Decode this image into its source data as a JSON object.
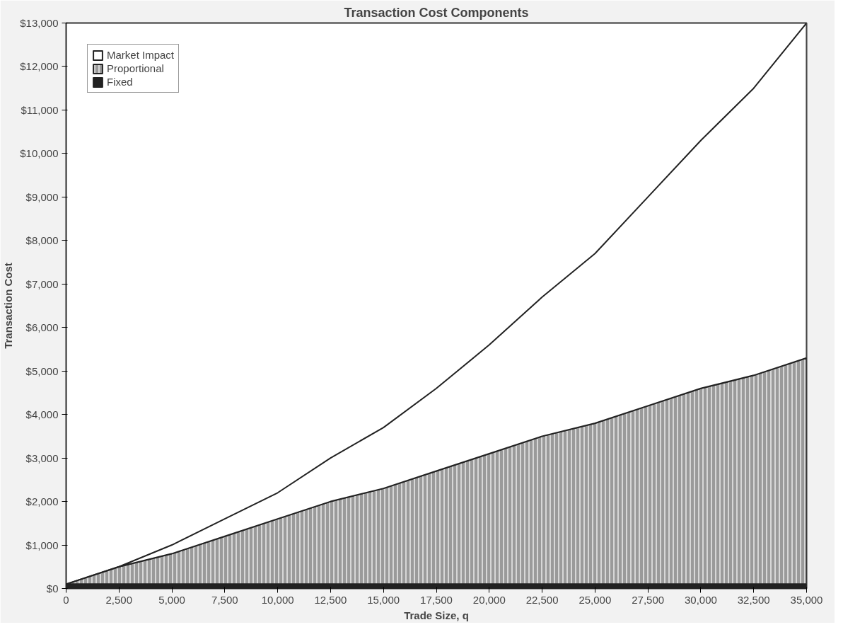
{
  "chart_data": {
    "type": "area",
    "stacked": true,
    "title": "Transaction Cost Components",
    "xlabel": "Trade Size, q",
    "ylabel": "Transaction Cost",
    "x": [
      0,
      2500,
      5000,
      7500,
      10000,
      12500,
      15000,
      17500,
      20000,
      22500,
      25000,
      27500,
      30000,
      32500,
      35000
    ],
    "series": [
      {
        "name": "Fixed",
        "color": "#222222",
        "values": [
          100,
          100,
          100,
          100,
          100,
          100,
          100,
          100,
          100,
          100,
          100,
          100,
          100,
          100,
          100
        ]
      },
      {
        "name": "Proportional",
        "color": "#9a9a9a",
        "values": [
          0,
          400,
          700,
          1100,
          1500,
          1900,
          2200,
          2600,
          3000,
          3400,
          3700,
          4100,
          4500,
          4800,
          5200
        ]
      },
      {
        "name": "Market Impact",
        "color": "#ffffff",
        "values": [
          0,
          0,
          200,
          400,
          600,
          1000,
          1400,
          1900,
          2500,
          3200,
          3900,
          4800,
          5700,
          6600,
          7700
        ]
      }
    ],
    "xlim": [
      0,
      35000
    ],
    "ylim": [
      0,
      13000
    ],
    "xticks": [
      0,
      {
        "value": 2500,
        "label": "2,500"
      },
      {
        "value": 5000,
        "label": "5,000"
      },
      {
        "value": 7500,
        "label": "7,500"
      },
      {
        "value": 10000,
        "label": "10,000"
      },
      {
        "value": 12500,
        "label": "12,500"
      },
      {
        "value": 15000,
        "label": "15,000"
      },
      {
        "value": 17500,
        "label": "17,500"
      },
      {
        "value": 20000,
        "label": "20,000"
      },
      {
        "value": 22500,
        "label": "22,500"
      },
      {
        "value": 25000,
        "label": "25,000"
      },
      {
        "value": 27500,
        "label": "27,500"
      },
      {
        "value": 30000,
        "label": "30,000"
      },
      {
        "value": 32500,
        "label": "32,500"
      },
      {
        "value": 35000,
        "label": "35,000"
      }
    ],
    "yticks": [
      {
        "value": 0,
        "label": "$0"
      },
      {
        "value": 1000,
        "label": "$1,000"
      },
      {
        "value": 2000,
        "label": "$2,000"
      },
      {
        "value": 3000,
        "label": "$3,000"
      },
      {
        "value": 4000,
        "label": "$4,000"
      },
      {
        "value": 5000,
        "label": "$5,000"
      },
      {
        "value": 6000,
        "label": "$6,000"
      },
      {
        "value": 7000,
        "label": "$7,000"
      },
      {
        "value": 8000,
        "label": "$8,000"
      },
      {
        "value": 9000,
        "label": "$9,000"
      },
      {
        "value": 10000,
        "label": "$10,000"
      },
      {
        "value": 11000,
        "label": "$11,000"
      },
      {
        "value": 12000,
        "label": "$12,000"
      },
      {
        "value": 13000,
        "label": "$13,000"
      }
    ],
    "grid": false,
    "legend": "top left"
  }
}
